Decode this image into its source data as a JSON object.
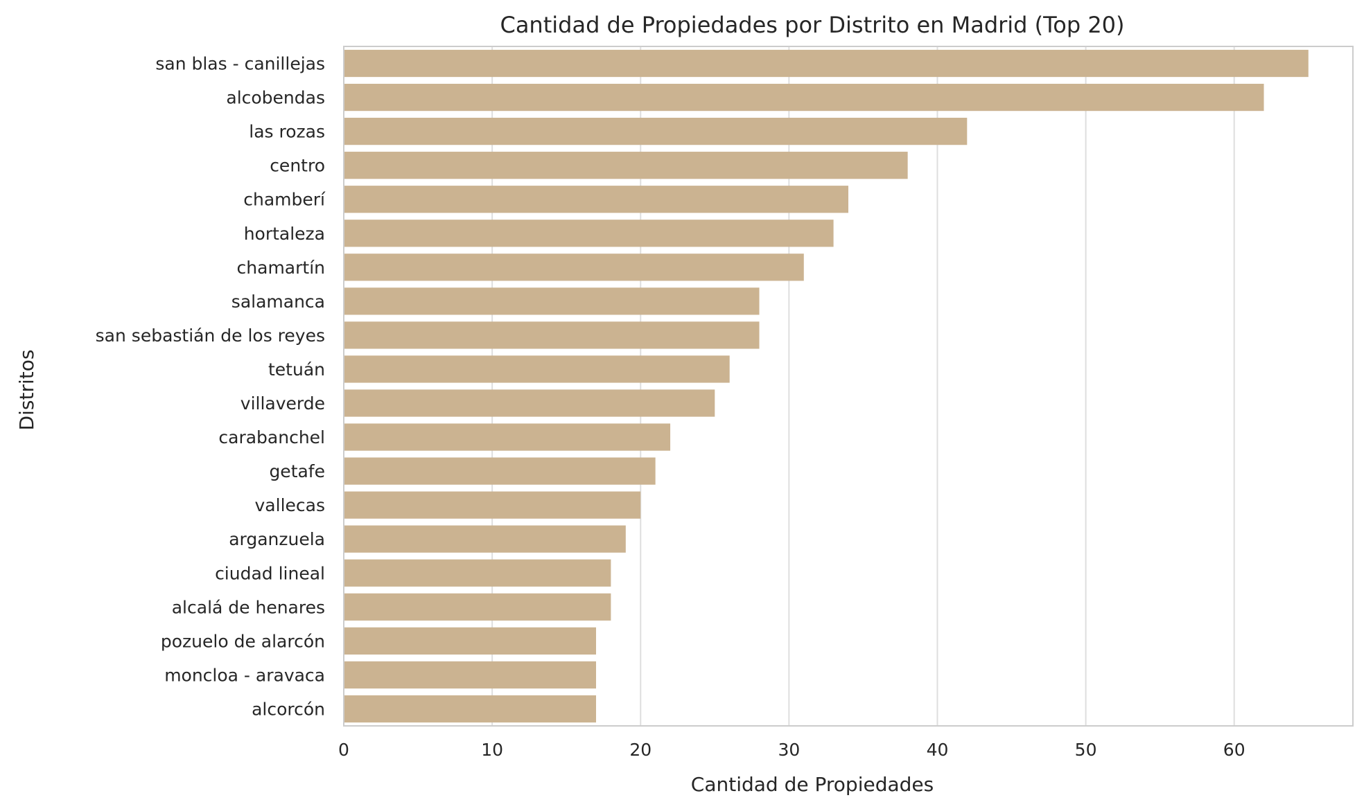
{
  "chart_data": {
    "type": "bar",
    "orientation": "horizontal",
    "title": "Cantidad de Propiedades por Distrito en Madrid (Top 20)",
    "xlabel": "Cantidad de Propiedades",
    "ylabel": "Distritos",
    "xlim": [
      0,
      68
    ],
    "xticks": [
      0,
      10,
      20,
      30,
      40,
      50,
      60
    ],
    "grid": "vertical",
    "bar_color": "#cbb391",
    "categories": [
      "san blas - canillejas",
      "alcobendas",
      "las rozas",
      "centro",
      "chamberí",
      "hortaleza",
      "chamartín",
      "salamanca",
      "san sebastián de los reyes",
      "tetuán",
      "villaverde",
      "carabanchel",
      "getafe",
      "vallecas",
      "arganzuela",
      "ciudad lineal",
      "alcalá de henares",
      "pozuelo de alarcón",
      "moncloa - aravaca",
      "alcorcón"
    ],
    "values": [
      65,
      62,
      42,
      38,
      34,
      33,
      31,
      28,
      28,
      26,
      25,
      22,
      21,
      20,
      19,
      18,
      18,
      17,
      17,
      17
    ]
  }
}
